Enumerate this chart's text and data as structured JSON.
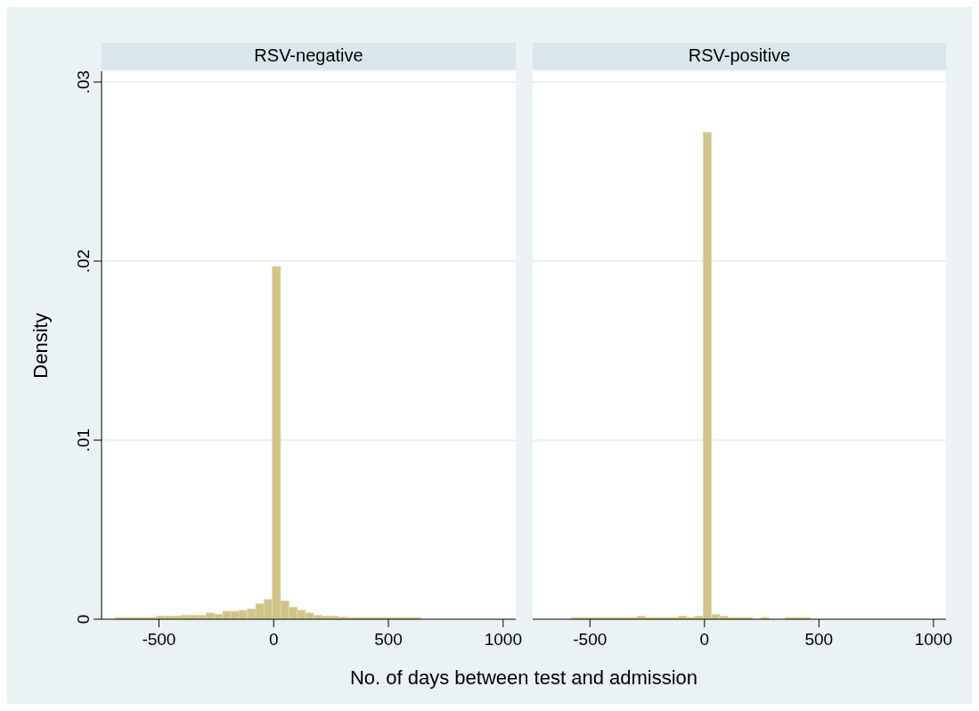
{
  "chart_data": [
    {
      "type": "histogram",
      "title": "RSV-negative",
      "xlabel": "No. of days between test and admission",
      "ylabel": "Density",
      "color": "#cfc58a",
      "grid": "y",
      "bins": [
        -690,
        -654,
        -618,
        -582,
        -546,
        -510,
        -474,
        -438,
        -402,
        -366,
        -330,
        -294,
        -258,
        -222,
        -186,
        -150,
        -114,
        -78,
        -42,
        -6,
        30,
        66,
        102,
        138,
        174,
        210,
        246,
        282,
        318,
        354,
        390,
        426,
        462,
        498,
        534,
        570,
        606,
        642
      ],
      "values": [
        0.0001,
        0.0001,
        0.0001,
        0.0001,
        0.0001,
        0.00017,
        0.00017,
        0.00017,
        0.00023,
        0.00023,
        0.00023,
        0.00035,
        0.00028,
        0.00045,
        0.00045,
        0.0005,
        0.00058,
        0.00087,
        0.0011,
        0.0197,
        0.00103,
        0.00068,
        0.0005,
        0.00035,
        0.00023,
        0.00017,
        0.00017,
        0.00012,
        0.0001,
        0.0001,
        0.0001,
        0.0001,
        0.0001,
        0.0001,
        0.0001,
        0.0001,
        0.0001
      ],
      "xlim": [
        -750,
        1055
      ],
      "xticks": [
        -500,
        0,
        500,
        1000
      ],
      "ylim": [
        0,
        0.0306
      ],
      "yticks": [
        {
          "value": 0,
          "label": "0"
        },
        {
          "value": 0.01,
          "label": ".01"
        },
        {
          "value": 0.02,
          "label": ".02"
        },
        {
          "value": 0.03,
          "label": ".03"
        }
      ]
    },
    {
      "type": "histogram",
      "title": "RSV-positive",
      "color": "#cfc58a",
      "grid": "y",
      "tick_labels": "x",
      "bins": [
        -582,
        -546,
        -510,
        -474,
        -438,
        -402,
        -366,
        -330,
        -294,
        -258,
        -222,
        -186,
        -150,
        -114,
        -78,
        -42,
        -6,
        30,
        66,
        102,
        138,
        174,
        210,
        246,
        282,
        318,
        354,
        390,
        426,
        462
      ],
      "values": [
        0.0001,
        0.0001,
        0.0001,
        0.0001,
        0.0001,
        0.0001,
        0.0001,
        0.0001,
        0.00017,
        0.0001,
        0.0001,
        0.0001,
        0.0001,
        0.00017,
        0.0001,
        0.00017,
        0.0272,
        0.00027,
        0.00017,
        0.0001,
        0.0001,
        0.0001,
        0,
        0.0001,
        0,
        0,
        0.0001,
        0.0001,
        0.0001
      ],
      "xlim": [
        -750,
        1055
      ],
      "xticks": [
        -500,
        0,
        500,
        1000
      ],
      "ylim": [
        0,
        0.0306
      ],
      "yticks": [
        0,
        0.01,
        0.02,
        0.03
      ]
    }
  ]
}
